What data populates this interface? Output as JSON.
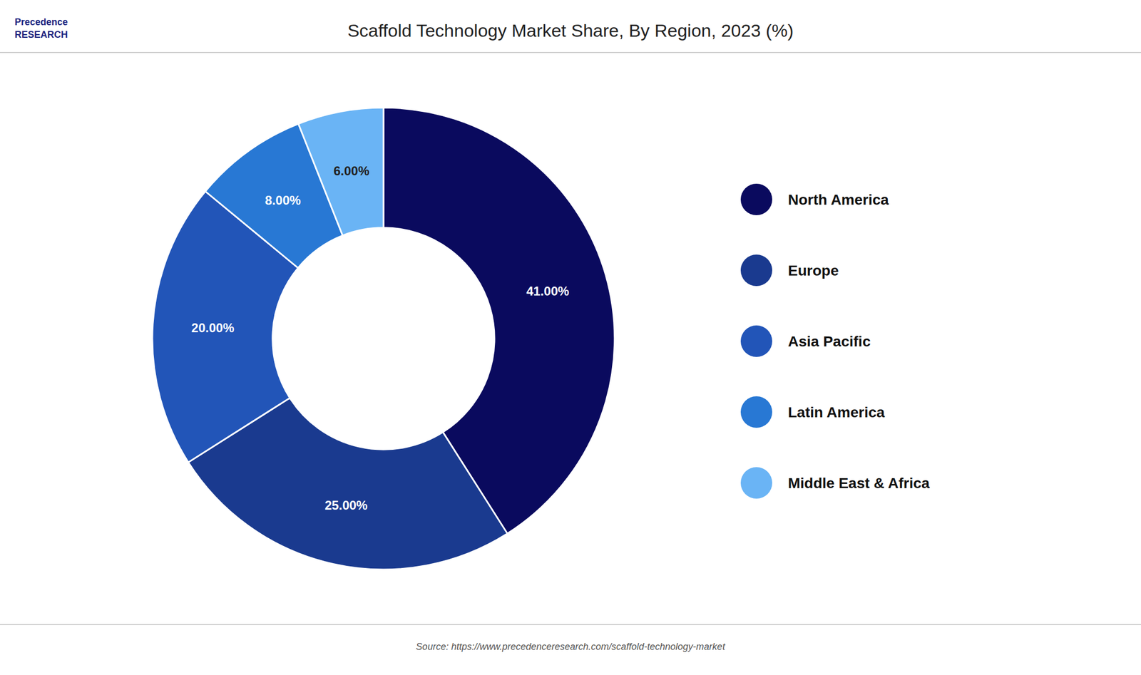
{
  "chart_data": {
    "type": "donut",
    "title": "Scaffold Technology Market Share, By Region, 2023 (%)",
    "categories": [
      "North America",
      "Europe",
      "Asia Pacific",
      "Latin America",
      "Middle East & Africa"
    ],
    "values": [
      41.0,
      25.0,
      20.0,
      8.0,
      6.0
    ],
    "value_labels": [
      "41.00%",
      "25.00%",
      "20.00%",
      "8.00%",
      "6.00%"
    ],
    "colors": [
      "#0a0a5e",
      "#1a3a8f",
      "#2255b8",
      "#2878d4",
      "#6ab4f5"
    ],
    "data_labels": true,
    "legend": "right",
    "annotations": [
      "Precedence\nRESEARCH",
      "Source: https://www.precedenceresearch.com/scaffold-technology-market"
    ]
  }
}
